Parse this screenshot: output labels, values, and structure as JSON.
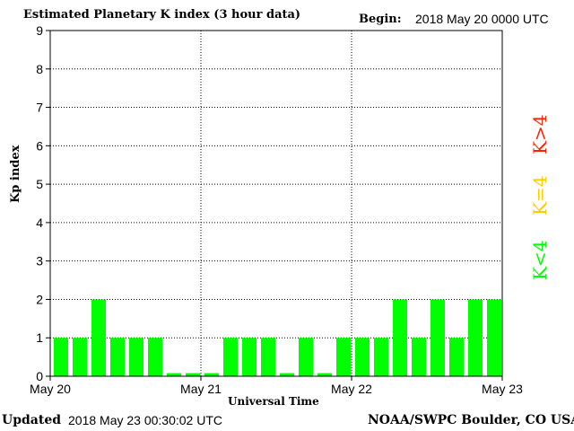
{
  "header": {
    "title": "Estimated Planetary K index (3 hour data)",
    "begin_label": "Begin:",
    "begin_value": "2018 May 20 0000 UTC"
  },
  "footer": {
    "updated_label": "Updated",
    "updated_value": "2018 May 23 00:30:02 UTC",
    "source": "NOAA/SWPC Boulder, CO USA"
  },
  "legend": {
    "high": "K>4",
    "mid": "K=4",
    "low": "K<4"
  },
  "colors": {
    "low": "#00ff00",
    "mid": "#ffcc00",
    "high": "#ff2200",
    "grid": "#000000"
  },
  "chart_data": {
    "type": "bar",
    "title": "Estimated Planetary K index (3 hour data)",
    "xlabel": "Universal Time",
    "ylabel": "Kp index",
    "ylim": [
      0,
      9
    ],
    "yticks": [
      "0",
      "1",
      "2",
      "3",
      "4",
      "5",
      "6",
      "7",
      "8",
      "9"
    ],
    "xticks": [
      "May 20",
      "May 21",
      "May 22",
      "May 23"
    ],
    "grid": true,
    "x_interval": "3 hour",
    "values": [
      1,
      1,
      2,
      1,
      1,
      1,
      0,
      0,
      0,
      1,
      1,
      1,
      0,
      1,
      0,
      1,
      1,
      1,
      2,
      1,
      2,
      1,
      2,
      2
    ]
  }
}
